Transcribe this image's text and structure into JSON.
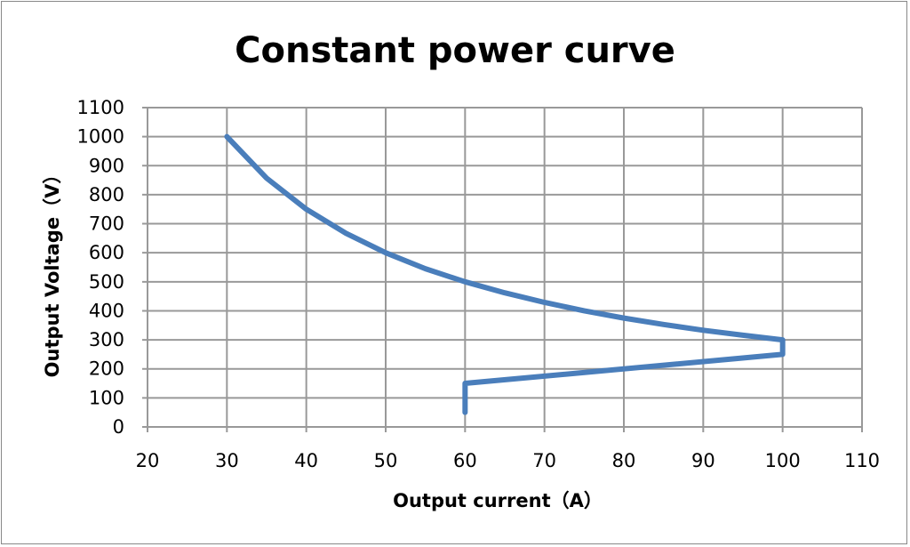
{
  "chart_data": {
    "type": "line",
    "title": "Constant power curve",
    "xlabel": "Output current（A）",
    "ylabel": "Output Voltage（V）",
    "xlim": [
      20,
      110
    ],
    "ylim": [
      0,
      1100
    ],
    "xticks": [
      20,
      30,
      40,
      50,
      60,
      70,
      80,
      90,
      100,
      110
    ],
    "yticks": [
      0,
      100,
      200,
      300,
      400,
      500,
      600,
      700,
      800,
      900,
      1000,
      1100
    ],
    "grid": true,
    "legend": "none",
    "series": [
      {
        "name": "Constant power",
        "color": "#4a7ebb",
        "x": [
          30,
          35,
          40,
          45,
          50,
          55,
          60,
          65,
          70,
          75,
          80,
          85,
          90,
          95,
          100,
          100,
          60,
          60
        ],
        "y": [
          1000,
          857,
          750,
          667,
          600,
          545,
          500,
          462,
          429,
          400,
          375,
          353,
          333,
          316,
          300,
          250,
          150,
          50
        ]
      }
    ]
  }
}
